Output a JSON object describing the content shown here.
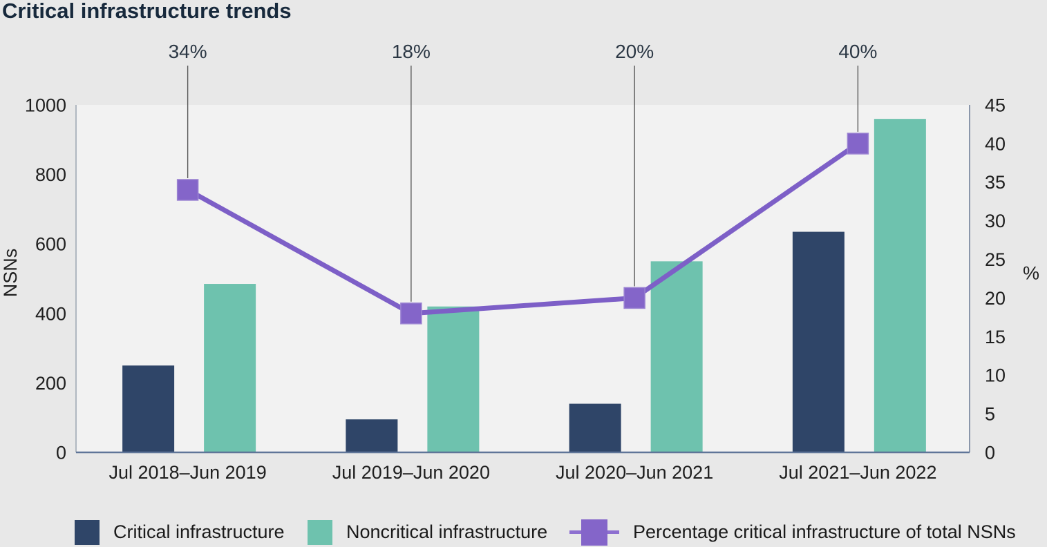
{
  "page": {
    "title": "Critical infrastructure trends",
    "background": "#e8e8e8",
    "plot_background": "#f2f2f2"
  },
  "chart_data": {
    "type": "bar",
    "subtype": "grouped-bars-with-line-overlay",
    "title": "Critical infrastructure trends",
    "categories": [
      "Jul 2018–Jun 2019",
      "Jul 2019–Jun 2020",
      "Jul 2020–Jun 2021",
      "Jul 2021–Jun 2022"
    ],
    "series": [
      {
        "name": "Critical infrastructure",
        "type": "bar",
        "axis": "left",
        "color": "#2f4568",
        "values": [
          250,
          95,
          140,
          635
        ]
      },
      {
        "name": "Noncritical infrastructure",
        "type": "bar",
        "axis": "left",
        "color": "#6ec2ae",
        "values": [
          485,
          420,
          550,
          960
        ]
      },
      {
        "name": "Percentage critical infrastructure of total NSNs",
        "type": "line",
        "axis": "right",
        "color": "#7d5fc7",
        "marker_color": "#8465c9",
        "values": [
          34,
          18,
          20,
          40
        ],
        "point_labels": [
          "34%",
          "18%",
          "20%",
          "40%"
        ]
      }
    ],
    "left_axis": {
      "title": "NSNs",
      "min": 0,
      "max": 1000,
      "ticks": [
        "1000",
        "800",
        "600",
        "400",
        "200",
        "0"
      ]
    },
    "right_axis": {
      "title": "%",
      "min": 0,
      "max": 45,
      "ticks": [
        "45",
        "40",
        "35",
        "30",
        "25",
        "20",
        "15",
        "10",
        "5",
        "0"
      ]
    },
    "legend_position": "bottom",
    "grid": false,
    "colors": {
      "axis_text": "#1f1f1f",
      "callout_text": "#2b3744",
      "callout_line": "#595959",
      "left_axis_line": "#9aa5b1",
      "right_axis_line": "#6b7b95",
      "bottom_axis_line": "#5f7598"
    }
  },
  "legend": {
    "items": [
      {
        "label": "Critical infrastructure",
        "swatch": "square",
        "color": "#2f4568"
      },
      {
        "label": "Noncritical infrastructure",
        "swatch": "square",
        "color": "#6ec2ae"
      },
      {
        "label": "Percentage critical infrastructure of total NSNs",
        "swatch": "line-marker",
        "color": "#8465c9",
        "line_color": "#8d6fd0"
      }
    ]
  }
}
